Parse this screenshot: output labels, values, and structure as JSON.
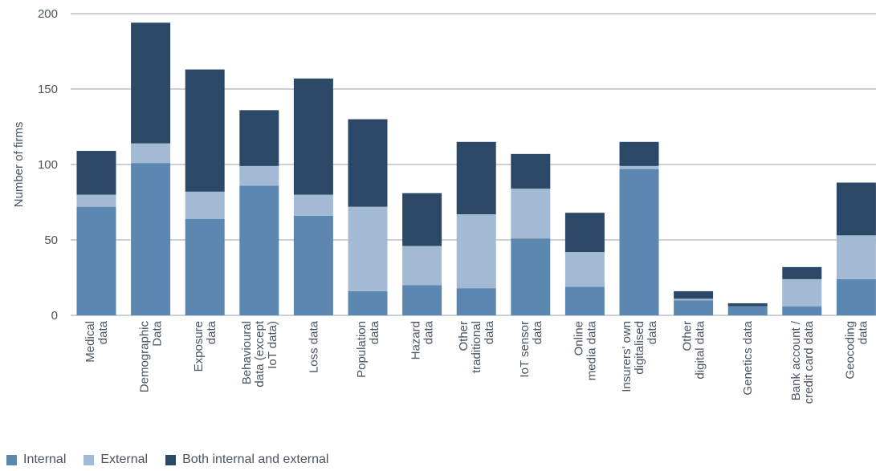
{
  "chart_data": {
    "type": "bar",
    "stacked": true,
    "ylabel": "Number of firms",
    "xlabel": "",
    "ylim": [
      0,
      200
    ],
    "yticks": [
      0,
      50,
      100,
      150,
      200
    ],
    "grid": true,
    "legend_position": "bottom-left",
    "categories": [
      [
        "Medical",
        "data"
      ],
      [
        "Demographic",
        "Data"
      ],
      [
        "Exposure",
        "data"
      ],
      [
        "Behavioural",
        "data (except",
        "IoT data)"
      ],
      [
        "Loss data"
      ],
      [
        "Population",
        "data"
      ],
      [
        "Hazard",
        "data"
      ],
      [
        "Other",
        "traditional",
        "data"
      ],
      [
        "IoT sensor",
        "data"
      ],
      [
        "Online",
        "media data"
      ],
      [
        "Insurers' own",
        "digitalised",
        "data"
      ],
      [
        "Other",
        "digital data"
      ],
      [
        "Genetics data"
      ],
      [
        "Bank account /",
        "credit card data"
      ],
      [
        "Geocoding",
        "data"
      ]
    ],
    "series": [
      {
        "name": "Internal",
        "color": "#5b87b1",
        "values": [
          72,
          101,
          64,
          86,
          66,
          16,
          20,
          18,
          51,
          19,
          97,
          10,
          6,
          6,
          24
        ]
      },
      {
        "name": "External",
        "color": "#a2bad3",
        "values": [
          8,
          13,
          18,
          13,
          14,
          56,
          26,
          49,
          33,
          23,
          2,
          1,
          0,
          18,
          29
        ]
      },
      {
        "name": "Both internal and external",
        "color": "#2b4866",
        "values": [
          29,
          80,
          81,
          37,
          77,
          58,
          35,
          48,
          23,
          26,
          16,
          5,
          2,
          8,
          35
        ]
      }
    ]
  }
}
